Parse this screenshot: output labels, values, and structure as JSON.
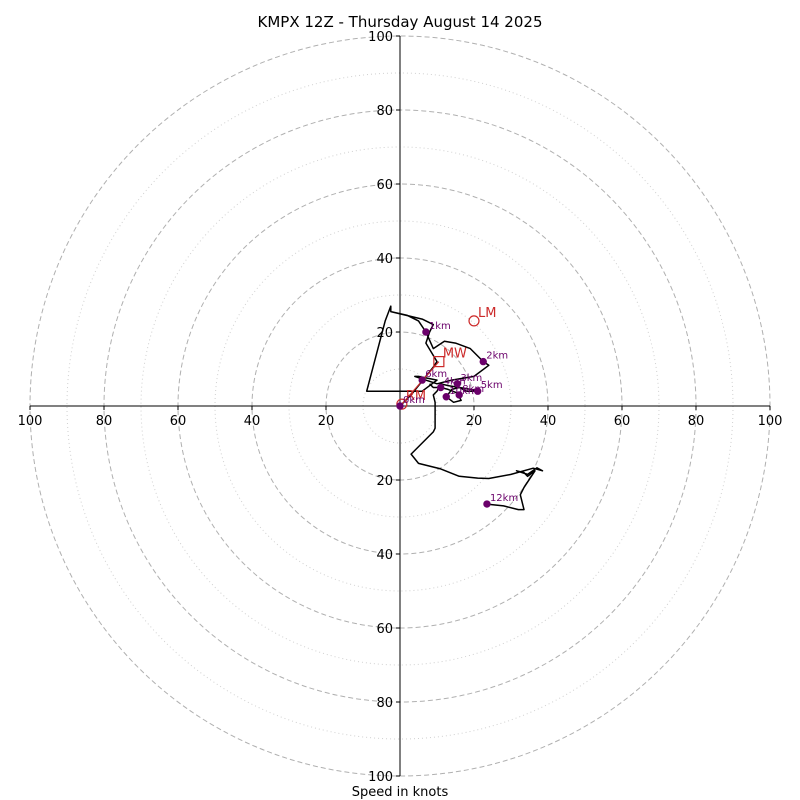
{
  "chart_data": {
    "type": "hodograph",
    "title": "KMPX 12Z - Thursday August 14 2025",
    "xlabel": "Speed in knots",
    "range": [
      -100,
      100
    ],
    "major_rings": [
      20,
      40,
      60,
      80,
      100
    ],
    "minor_rings": [
      10,
      30,
      50,
      70,
      90
    ],
    "x_ticks": [
      {
        "value": -100,
        "label": "100"
      },
      {
        "value": -80,
        "label": "80"
      },
      {
        "value": -60,
        "label": "60"
      },
      {
        "value": -40,
        "label": "40"
      },
      {
        "value": -20,
        "label": "20"
      },
      {
        "value": 20,
        "label": "20"
      },
      {
        "value": 40,
        "label": "40"
      },
      {
        "value": 60,
        "label": "60"
      },
      {
        "value": 80,
        "label": "80"
      },
      {
        "value": 100,
        "label": "100"
      }
    ],
    "y_ticks": [
      {
        "value": 100,
        "label": "100"
      },
      {
        "value": 80,
        "label": "80"
      },
      {
        "value": 60,
        "label": "60"
      },
      {
        "value": 40,
        "label": "40"
      },
      {
        "value": 20,
        "label": "20"
      },
      {
        "value": -20,
        "label": "20"
      },
      {
        "value": -40,
        "label": "40"
      },
      {
        "value": -60,
        "label": "60"
      },
      {
        "value": -80,
        "label": "80"
      },
      {
        "value": -100,
        "label": "100"
      }
    ],
    "trace": [
      [
        0,
        0
      ],
      [
        1,
        1
      ],
      [
        3,
        3
      ],
      [
        5,
        5.5
      ],
      [
        7,
        8
      ],
      [
        9,
        10.5
      ],
      [
        10,
        12
      ],
      [
        7,
        17
      ],
      [
        8,
        20
      ],
      [
        9,
        22
      ],
      [
        6,
        23.5
      ],
      [
        -2.5,
        25.5
      ],
      [
        -2.5,
        27
      ],
      [
        -4,
        23
      ],
      [
        -9,
        4
      ],
      [
        6,
        4
      ],
      [
        10,
        7
      ],
      [
        5,
        8
      ],
      [
        4,
        8
      ],
      [
        10,
        6
      ],
      [
        14,
        7
      ],
      [
        20,
        8
      ],
      [
        24,
        11
      ],
      [
        22.5,
        12
      ],
      [
        19,
        15.5
      ],
      [
        15,
        17
      ],
      [
        12,
        17.5
      ],
      [
        9,
        15.5
      ],
      [
        7,
        20
      ],
      [
        5,
        23
      ],
      [
        2,
        24.5
      ],
      [
        -2.5,
        25.5
      ]
    ],
    "trace_lower": [
      [
        8,
        6
      ],
      [
        9,
        5
      ],
      [
        11,
        5
      ],
      [
        13,
        4.5
      ],
      [
        15.5,
        3.5
      ],
      [
        16.5,
        1.5
      ],
      [
        14.5,
        1
      ],
      [
        12.5,
        2.5
      ],
      [
        14,
        4.5
      ],
      [
        16,
        5
      ],
      [
        18,
        4
      ],
      [
        20,
        4
      ],
      [
        21,
        4.2
      ],
      [
        13,
        5.5
      ],
      [
        11,
        6
      ],
      [
        10,
        4
      ],
      [
        9,
        3
      ],
      [
        9.5,
        1
      ],
      [
        9.5,
        -6
      ],
      [
        9,
        -7
      ],
      [
        6,
        -10
      ],
      [
        3,
        -13
      ],
      [
        5,
        -15.5
      ],
      [
        11,
        -17
      ],
      [
        16,
        -19
      ],
      [
        21,
        -19.5
      ],
      [
        24,
        -19.6
      ],
      [
        30,
        -18.5
      ],
      [
        36,
        -16.8
      ],
      [
        38.5,
        -17.5
      ],
      [
        37,
        -16.7
      ],
      [
        34.5,
        -18.5
      ],
      [
        31.5,
        -17.5
      ],
      [
        33.5,
        -18
      ],
      [
        34.5,
        -19
      ],
      [
        36.5,
        -17.5
      ],
      [
        33.5,
        -22
      ],
      [
        32.5,
        -24
      ],
      [
        33.5,
        -28
      ],
      [
        32,
        -28
      ],
      [
        28,
        -27
      ],
      [
        23.5,
        -26.5
      ]
    ],
    "height_markers": [
      {
        "u": 0,
        "v": 0,
        "label": "0km"
      },
      {
        "u": 7,
        "v": 20,
        "label": "1km"
      },
      {
        "u": 22.5,
        "v": 12,
        "label": "2km"
      },
      {
        "u": 15.5,
        "v": 6,
        "label": "3km"
      },
      {
        "u": 11,
        "v": 5,
        "label": "4km"
      },
      {
        "u": 21,
        "v": 4,
        "label": "5km"
      },
      {
        "u": 6,
        "v": 7,
        "label": "6km"
      },
      {
        "u": 16,
        "v": 3,
        "label": "8km"
      },
      {
        "u": 12.5,
        "v": 2.5,
        "label": "10km"
      },
      {
        "u": 23.5,
        "v": -26.5,
        "label": "12km"
      }
    ],
    "storm_motions": [
      {
        "label": "LM",
        "u": 20,
        "v": 23,
        "shape": "circle"
      },
      {
        "label": "MW",
        "u": 10.5,
        "v": 12,
        "shape": "square"
      },
      {
        "label": "RM",
        "u": 0.5,
        "v": 0.5,
        "shape": "circle"
      }
    ],
    "colors": {
      "trace": "#000000",
      "marker": "#6a006a",
      "storm_motion": "#cc2a2a",
      "major_grid": "#b0b0b0",
      "minor_grid": "#d0d0d0"
    }
  }
}
